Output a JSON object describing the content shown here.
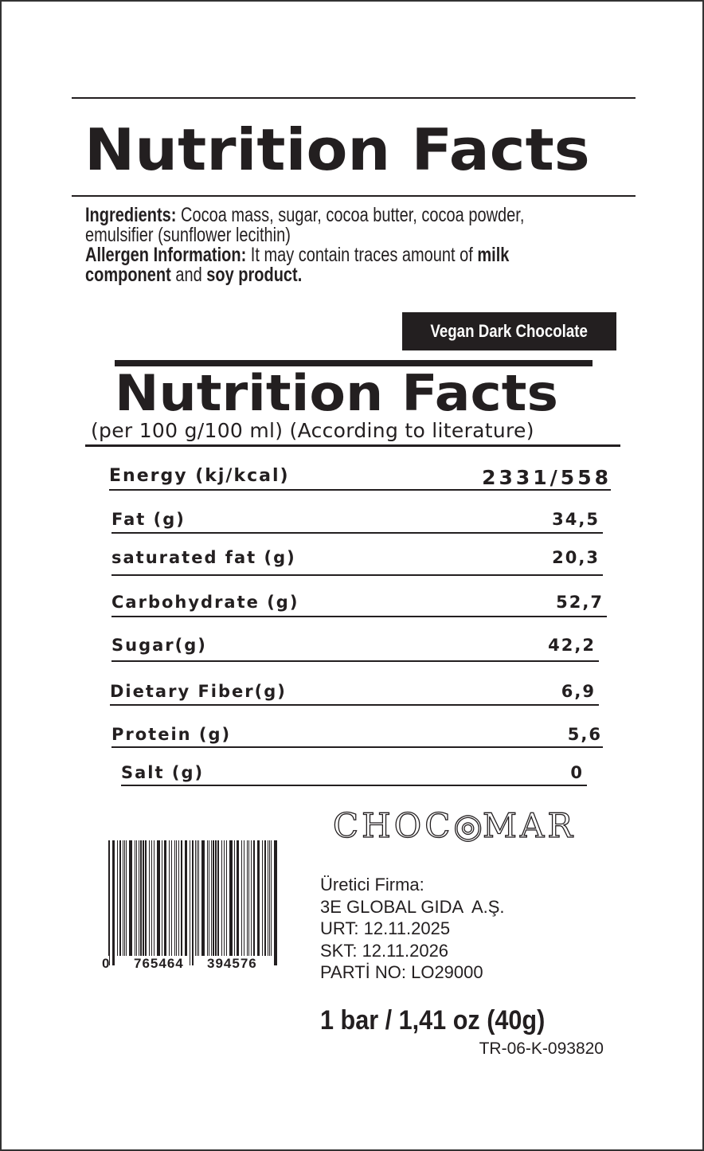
{
  "header": {
    "title": "Nutrition Facts"
  },
  "ingredients": {
    "label": "Ingredients:",
    "text": " Cocoa mass, sugar, cocoa butter, cocoa powder, emulsifier (sunflower lecithin)"
  },
  "allergen": {
    "label": "Allergen Information:",
    "text": " It may contain traces amount of ",
    "bold1": "milk component",
    "mid": " and ",
    "bold2": "soy product."
  },
  "product_badge": "Vegan Dark Chocolate",
  "nutrition": {
    "title": "Nutrition Facts",
    "subtitle": "(per 100 g/100 ml) (According to literature)",
    "rows": [
      {
        "label": "Energy (kj/kcal)",
        "value": "2331/558"
      },
      {
        "label": "Fat (g)",
        "value": "34,5"
      },
      {
        "label": "saturated fat (g)",
        "value": "20,3"
      },
      {
        "label": "Carbohydrate (g)",
        "value": "52,7"
      },
      {
        "label": "Sugar(g)",
        "value": "42,2"
      },
      {
        "label": "Dietary Fiber(g)",
        "value": "6,9"
      },
      {
        "label": "Protein (g)",
        "value": "5,6"
      },
      {
        "label": "Salt (g)",
        "value": "0"
      }
    ]
  },
  "brand": {
    "logo": "CHOCOMAR"
  },
  "barcode": {
    "lead": "0",
    "left": "765464",
    "right": "394576"
  },
  "manufacturer": {
    "lines": [
      "Üretici Firma:",
      "3E GLOBAL GIDA  A.Ş.",
      "URT: 12.11.2025",
      "SKT: 12.11.2026",
      "PARTİ NO: LO29000"
    ]
  },
  "serving": "1 bar / 1,41 oz (40g)",
  "registration_code": "TR-06-K-093820"
}
